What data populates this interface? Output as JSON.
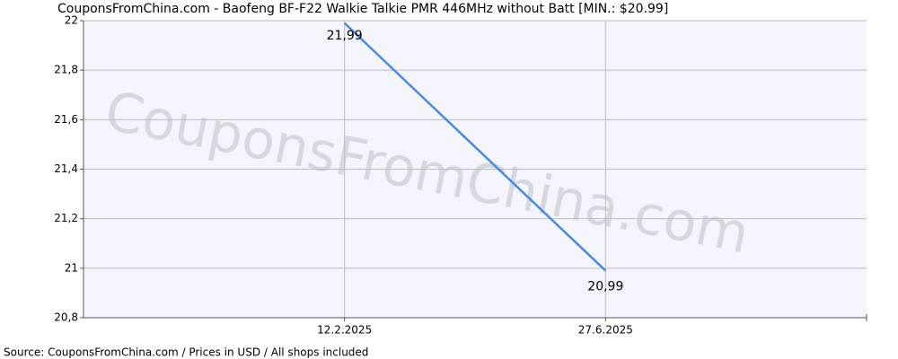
{
  "chart_data": {
    "type": "line",
    "title": "CouponsFromChina.com - Baofeng BF-F22 Walkie Talkie PMR 446MHz without Batt [MIN.: $20.99]",
    "watermark": "CouponsFromChina.com",
    "source": "Source:  CouponsFromChina.com / Prices in USD / All shops included",
    "categories": [
      null,
      "12.2.2025",
      "27.6.2025",
      null
    ],
    "series": [
      {
        "name": "Price",
        "color": "#4a8ae0",
        "values": [
          null,
          21.99,
          20.99,
          null
        ],
        "value_labels": [
          null,
          "21,99",
          "20,99",
          null
        ]
      }
    ],
    "ylim": [
      20.8,
      22
    ],
    "yticks": [
      {
        "value": 20.8,
        "label": "20,8"
      },
      21,
      {
        "value": 21.2,
        "label": "21,2"
      },
      {
        "value": 21.4,
        "label": "21,4"
      },
      {
        "value": 21.6,
        "label": "21,6"
      },
      {
        "value": 21.8,
        "label": "21,8"
      },
      22
    ],
    "grid": true
  }
}
